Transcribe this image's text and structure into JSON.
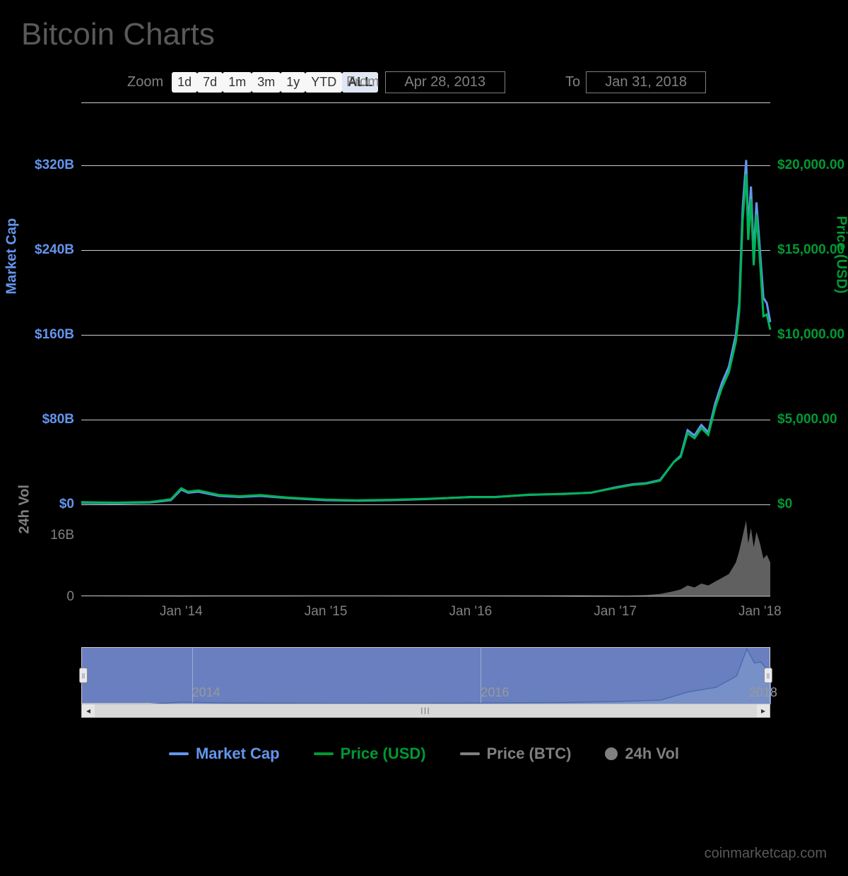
{
  "title": "Bitcoin Charts",
  "zoom": {
    "label": "Zoom",
    "buttons": [
      "1d",
      "7d",
      "1m",
      "3m",
      "1y",
      "YTD",
      "ALL"
    ],
    "selected": "ALL"
  },
  "dateRange": {
    "fromLabel": "From",
    "fromValue": "Apr 28, 2013",
    "toLabel": "To",
    "toValue": "Jan 31, 2018"
  },
  "chart": {
    "type": "line",
    "background": "#000000",
    "grid_color": "#cccccc",
    "leftAxis": {
      "label": "Market Cap",
      "color": "#6495ed",
      "ticks": [
        {
          "v": 0,
          "label": "$0"
        },
        {
          "v": 80,
          "label": "$80B"
        },
        {
          "v": 160,
          "label": "$160B"
        },
        {
          "v": 240,
          "label": "$240B"
        },
        {
          "v": 320,
          "label": "$320B"
        }
      ],
      "ylim": [
        0,
        340
      ]
    },
    "rightAxis": {
      "label": "Price (USD)",
      "color": "#009933",
      "ticks": [
        {
          "v": 0,
          "label": "$0"
        },
        {
          "v": 5000,
          "label": "$5,000.00"
        },
        {
          "v": 10000,
          "label": "$10,000.00"
        },
        {
          "v": 15000,
          "label": "$15,000.00"
        },
        {
          "v": 20000,
          "label": "$20,000.00"
        }
      ],
      "ylim": [
        0,
        21250
      ]
    },
    "xAxis": {
      "ticks": [
        {
          "t": 0.145,
          "label": "Jan '14"
        },
        {
          "t": 0.355,
          "label": "Jan '15"
        },
        {
          "t": 0.565,
          "label": "Jan '16"
        },
        {
          "t": 0.775,
          "label": "Jan '17"
        },
        {
          "t": 0.985,
          "label": "Jan '18"
        }
      ],
      "range": [
        "2013-04-28",
        "2018-01-31"
      ]
    },
    "series": {
      "marketCap": {
        "color": "#6495ed",
        "width": 3,
        "points": [
          [
            0.0,
            1.5
          ],
          [
            0.05,
            1.2
          ],
          [
            0.1,
            1.8
          ],
          [
            0.13,
            4
          ],
          [
            0.145,
            14
          ],
          [
            0.155,
            11
          ],
          [
            0.17,
            12
          ],
          [
            0.2,
            8
          ],
          [
            0.23,
            7
          ],
          [
            0.26,
            8
          ],
          [
            0.3,
            6
          ],
          [
            0.355,
            4
          ],
          [
            0.4,
            3.5
          ],
          [
            0.45,
            4
          ],
          [
            0.5,
            5
          ],
          [
            0.565,
            7
          ],
          [
            0.6,
            7
          ],
          [
            0.65,
            9
          ],
          [
            0.7,
            10
          ],
          [
            0.74,
            11
          ],
          [
            0.775,
            16
          ],
          [
            0.8,
            19
          ],
          [
            0.82,
            20
          ],
          [
            0.84,
            23
          ],
          [
            0.86,
            40
          ],
          [
            0.87,
            46
          ],
          [
            0.88,
            70
          ],
          [
            0.89,
            65
          ],
          [
            0.9,
            75
          ],
          [
            0.91,
            68
          ],
          [
            0.92,
            95
          ],
          [
            0.93,
            115
          ],
          [
            0.94,
            130
          ],
          [
            0.95,
            160
          ],
          [
            0.955,
            190
          ],
          [
            0.96,
            280
          ],
          [
            0.965,
            325
          ],
          [
            0.968,
            260
          ],
          [
            0.972,
            300
          ],
          [
            0.976,
            235
          ],
          [
            0.98,
            285
          ],
          [
            0.985,
            240
          ],
          [
            0.99,
            195
          ],
          [
            0.995,
            190
          ],
          [
            1.0,
            172
          ]
        ]
      },
      "priceUsd": {
        "color": "#00b359",
        "width": 3,
        "points": [
          [
            0.0,
            135
          ],
          [
            0.05,
            105
          ],
          [
            0.1,
            140
          ],
          [
            0.13,
            300
          ],
          [
            0.145,
            950
          ],
          [
            0.155,
            750
          ],
          [
            0.17,
            820
          ],
          [
            0.2,
            560
          ],
          [
            0.23,
            480
          ],
          [
            0.26,
            550
          ],
          [
            0.3,
            400
          ],
          [
            0.355,
            280
          ],
          [
            0.4,
            240
          ],
          [
            0.45,
            270
          ],
          [
            0.5,
            330
          ],
          [
            0.565,
            430
          ],
          [
            0.6,
            430
          ],
          [
            0.65,
            580
          ],
          [
            0.7,
            610
          ],
          [
            0.74,
            700
          ],
          [
            0.775,
            970
          ],
          [
            0.8,
            1150
          ],
          [
            0.82,
            1220
          ],
          [
            0.84,
            1400
          ],
          [
            0.86,
            2500
          ],
          [
            0.87,
            2800
          ],
          [
            0.88,
            4200
          ],
          [
            0.89,
            3900
          ],
          [
            0.9,
            4500
          ],
          [
            0.91,
            4100
          ],
          [
            0.92,
            5700
          ],
          [
            0.93,
            6900
          ],
          [
            0.94,
            7800
          ],
          [
            0.95,
            9600
          ],
          [
            0.955,
            11400
          ],
          [
            0.96,
            16800
          ],
          [
            0.965,
            19500
          ],
          [
            0.968,
            15600
          ],
          [
            0.972,
            18000
          ],
          [
            0.976,
            14100
          ],
          [
            0.98,
            17100
          ],
          [
            0.985,
            14400
          ],
          [
            0.99,
            11100
          ],
          [
            0.995,
            11200
          ],
          [
            1.0,
            10300
          ]
        ]
      }
    },
    "volume": {
      "label": "24h Vol",
      "color": "#808080",
      "ticks": [
        {
          "v": 0,
          "label": "0"
        },
        {
          "v": 16,
          "label": "16B"
        }
      ],
      "ylim": [
        0,
        24
      ],
      "points": [
        [
          0.145,
          0.1
        ],
        [
          0.2,
          0.05
        ],
        [
          0.355,
          0.02
        ],
        [
          0.5,
          0.03
        ],
        [
          0.565,
          0.05
        ],
        [
          0.65,
          0.1
        ],
        [
          0.7,
          0.12
        ],
        [
          0.775,
          0.3
        ],
        [
          0.8,
          0.4
        ],
        [
          0.82,
          0.5
        ],
        [
          0.84,
          0.8
        ],
        [
          0.86,
          1.5
        ],
        [
          0.87,
          2
        ],
        [
          0.88,
          3
        ],
        [
          0.89,
          2.5
        ],
        [
          0.9,
          3.5
        ],
        [
          0.91,
          3
        ],
        [
          0.92,
          4
        ],
        [
          0.93,
          5
        ],
        [
          0.94,
          6
        ],
        [
          0.95,
          9
        ],
        [
          0.955,
          12
        ],
        [
          0.96,
          16
        ],
        [
          0.965,
          20
        ],
        [
          0.968,
          14
        ],
        [
          0.972,
          18
        ],
        [
          0.976,
          13
        ],
        [
          0.98,
          17
        ],
        [
          0.985,
          14
        ],
        [
          0.99,
          10
        ],
        [
          0.995,
          11
        ],
        [
          1.0,
          9
        ]
      ]
    }
  },
  "navigator": {
    "background": "#6a7fbf",
    "years": [
      {
        "t": 0.16,
        "label": "2014"
      },
      {
        "t": 0.58,
        "label": "2016"
      },
      {
        "t": 1.0,
        "label": "2018"
      }
    ],
    "line_color": "#4a6db0",
    "fill_color": "#7890c8",
    "points": [
      [
        0.0,
        0.005
      ],
      [
        0.1,
        0.006
      ],
      [
        0.145,
        0.04
      ],
      [
        0.2,
        0.025
      ],
      [
        0.355,
        0.015
      ],
      [
        0.5,
        0.017
      ],
      [
        0.565,
        0.022
      ],
      [
        0.7,
        0.032
      ],
      [
        0.775,
        0.05
      ],
      [
        0.84,
        0.075
      ],
      [
        0.88,
        0.22
      ],
      [
        0.92,
        0.3
      ],
      [
        0.95,
        0.5
      ],
      [
        0.965,
        0.98
      ],
      [
        0.976,
        0.73
      ],
      [
        0.985,
        0.75
      ],
      [
        1.0,
        0.54
      ]
    ]
  },
  "legend": {
    "items": [
      {
        "label": "Market Cap",
        "color": "#6495ed",
        "type": "line"
      },
      {
        "label": "Price (USD)",
        "color": "#009933",
        "type": "line"
      },
      {
        "label": "Price (BTC)",
        "color": "#808080",
        "type": "line"
      },
      {
        "label": "24h Vol",
        "color": "#808080",
        "type": "dot"
      }
    ]
  },
  "attribution": "coinmarketcap.com"
}
